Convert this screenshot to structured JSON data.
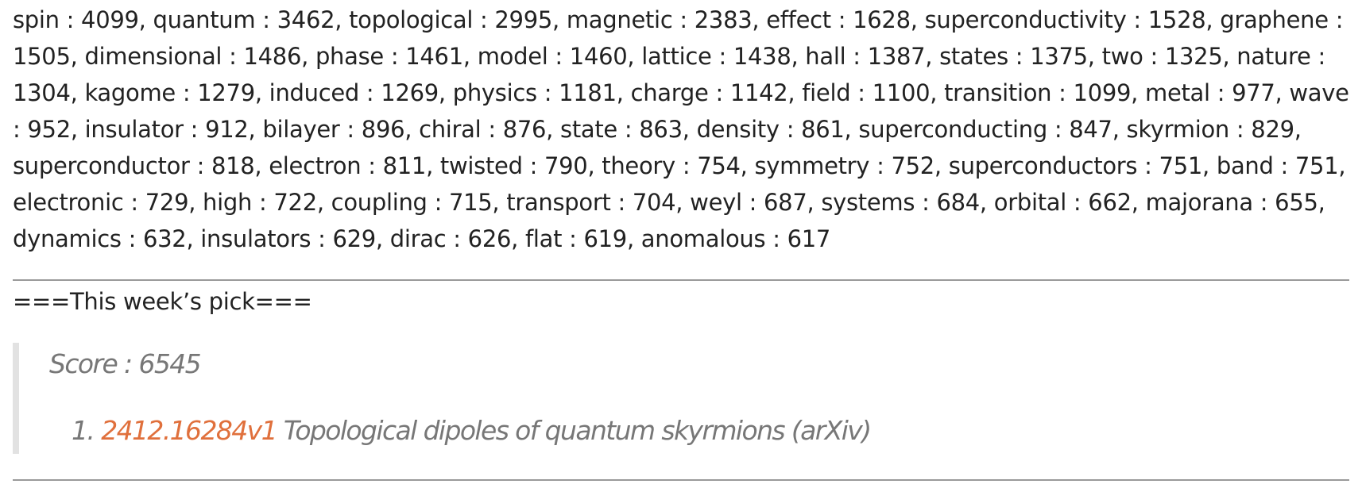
{
  "keywords_text": "spin : 4099, quantum : 3462, topological : 2995, magnetic : 2383, effect : 1628, superconductivity : 1528, graphene : 1505, dimensional : 1486, phase : 1461, model : 1460, lattice : 1438, hall : 1387, states : 1375, two : 1325, nature : 1304, kagome : 1279, induced : 1269, physics : 1181, charge : 1142, field : 1100, transition : 1099, metal : 977, wave : 952, insulator : 912, bilayer : 896, chiral : 876, state : 863, density : 861, superconducting : 847, skyrmion : 829, superconductor : 818, electron : 811, twisted : 790, theory : 754, symmetry : 752, superconductors : 751, band : 751, electronic : 729, high : 722, coupling : 715, transport : 704, weyl : 687, systems : 684, orbital : 662, majorana : 655, dynamics : 632, insulators : 629, dirac : 626, flat : 619, anomalous : 617",
  "section_heading": "===This week’s pick===",
  "pick": {
    "score_text": "Score : 6545",
    "items": [
      {
        "number": "1.",
        "arxiv_id": "2412.16284v1",
        "title": "Topological dipoles of quantum skyrmions (arXiv)"
      }
    ]
  },
  "colors": {
    "link": "#e0703c",
    "muted_text": "#777777",
    "body_text": "#222222",
    "blockquote_bar": "#e2e2e2",
    "rule": "#9a9a9a"
  }
}
